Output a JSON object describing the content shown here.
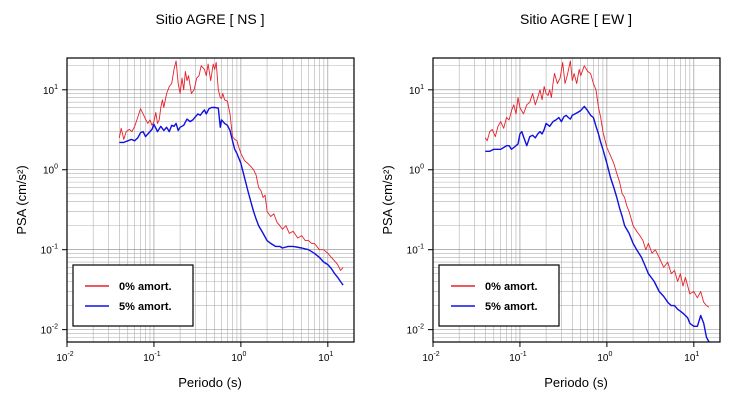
{
  "chart_data": [
    {
      "type": "line",
      "title": "Sitio AGRE [ NS ]",
      "xlabel": "Periodo (s)",
      "ylabel": "PSA (cm/s²)",
      "xscale": "log",
      "yscale": "log",
      "xlim": [
        0.01,
        20
      ],
      "ylim": [
        0.007,
        25
      ],
      "xticks": [
        {
          "base": "10",
          "exp": "-2"
        },
        {
          "base": "10",
          "exp": "-1"
        },
        {
          "base": "10",
          "exp": "0"
        },
        {
          "base": "10",
          "exp": "1"
        }
      ],
      "yticks": [
        {
          "base": "10",
          "exp": "-2"
        },
        {
          "base": "10",
          "exp": "-1"
        },
        {
          "base": "10",
          "exp": "0"
        },
        {
          "base": "10",
          "exp": "1"
        }
      ],
      "grid": true,
      "legend_position": "bottom-left",
      "series": [
        {
          "name": "0% amort.",
          "color": "#e8202a",
          "x": [
            0.04,
            0.042,
            0.045,
            0.048,
            0.052,
            0.056,
            0.06,
            0.065,
            0.07,
            0.075,
            0.08,
            0.085,
            0.09,
            0.095,
            0.1,
            0.105,
            0.11,
            0.115,
            0.12,
            0.125,
            0.13,
            0.14,
            0.15,
            0.16,
            0.17,
            0.18,
            0.19,
            0.2,
            0.21,
            0.22,
            0.23,
            0.24,
            0.25,
            0.27,
            0.29,
            0.31,
            0.33,
            0.35,
            0.38,
            0.4,
            0.42,
            0.45,
            0.48,
            0.5,
            0.52,
            0.55,
            0.58,
            0.6,
            0.62,
            0.65,
            0.7,
            0.75,
            0.8,
            0.85,
            0.9,
            0.95,
            1.0,
            1.1,
            1.2,
            1.3,
            1.4,
            1.5,
            1.6,
            1.7,
            1.8,
            1.9,
            2.0,
            2.2,
            2.4,
            2.6,
            2.8,
            3.0,
            3.3,
            3.6,
            4.0,
            4.5,
            5.0,
            5.5,
            6.0,
            6.5,
            7.0,
            8.0,
            9.0,
            10.0,
            11.0,
            12.0,
            13.0,
            14.0,
            15.0
          ],
          "values": [
            2.5,
            3.3,
            2.4,
            3.0,
            3.2,
            3.0,
            3.5,
            4.5,
            5.8,
            5.0,
            4.3,
            3.8,
            4.2,
            3.6,
            4.0,
            5.2,
            3.8,
            4.2,
            6.0,
            7.5,
            6.0,
            9.0,
            11.0,
            12.0,
            18.0,
            23.0,
            12.0,
            9.0,
            14.0,
            10.0,
            17.0,
            13.0,
            15.0,
            9.0,
            10.0,
            14.0,
            15.0,
            20.0,
            18.0,
            15.0,
            21.0,
            13.0,
            21.0,
            18.0,
            22.0,
            10.0,
            8.0,
            7.8,
            9.0,
            7.5,
            7.2,
            5.0,
            2.6,
            2.4,
            2.3,
            1.9,
            1.6,
            1.3,
            1.2,
            1.1,
            1.0,
            0.85,
            0.6,
            0.55,
            0.45,
            0.48,
            0.3,
            0.26,
            0.28,
            0.22,
            0.2,
            0.18,
            0.2,
            0.16,
            0.17,
            0.14,
            0.15,
            0.13,
            0.13,
            0.12,
            0.12,
            0.1,
            0.1,
            0.09,
            0.08,
            0.072,
            0.065,
            0.055,
            0.06
          ]
        },
        {
          "name": "5% amort.",
          "color": "#1010e0",
          "x": [
            0.04,
            0.045,
            0.05,
            0.055,
            0.06,
            0.065,
            0.07,
            0.075,
            0.08,
            0.085,
            0.09,
            0.095,
            0.1,
            0.11,
            0.12,
            0.13,
            0.14,
            0.15,
            0.16,
            0.17,
            0.18,
            0.19,
            0.2,
            0.22,
            0.24,
            0.26,
            0.28,
            0.3,
            0.32,
            0.34,
            0.36,
            0.38,
            0.4,
            0.43,
            0.46,
            0.5,
            0.55,
            0.58,
            0.6,
            0.65,
            0.7,
            0.75,
            0.8,
            0.85,
            0.9,
            1.0,
            1.1,
            1.2,
            1.3,
            1.4,
            1.5,
            1.6,
            1.8,
            2.0,
            2.2,
            2.5,
            2.8,
            3.0,
            3.5,
            4.0,
            5.0,
            6.0,
            7.0,
            8.0,
            9.0,
            10.0,
            11.0,
            12.0,
            13.0,
            14.0,
            15.0
          ],
          "values": [
            2.2,
            2.2,
            2.3,
            2.4,
            2.3,
            2.5,
            2.9,
            3.0,
            2.6,
            2.8,
            3.0,
            3.2,
            3.7,
            3.0,
            3.5,
            3.1,
            3.4,
            3.0,
            3.6,
            3.5,
            3.8,
            3.1,
            3.4,
            3.6,
            4.3,
            4.0,
            4.2,
            4.6,
            5.0,
            4.8,
            5.2,
            5.6,
            5.0,
            5.8,
            6.0,
            6.0,
            5.9,
            3.4,
            4.2,
            3.8,
            3.6,
            3.1,
            2.3,
            1.8,
            1.6,
            1.2,
            0.8,
            0.55,
            0.4,
            0.3,
            0.24,
            0.2,
            0.16,
            0.13,
            0.12,
            0.11,
            0.11,
            0.105,
            0.11,
            0.11,
            0.105,
            0.1,
            0.09,
            0.08,
            0.07,
            0.065,
            0.058,
            0.05,
            0.045,
            0.04,
            0.036
          ]
        }
      ]
    },
    {
      "type": "line",
      "title": "Sitio AGRE [ EW ]",
      "xlabel": "Periodo (s)",
      "ylabel": "PSA (cm/s²)",
      "xscale": "log",
      "yscale": "log",
      "xlim": [
        0.01,
        20
      ],
      "ylim": [
        0.007,
        25
      ],
      "xticks": [
        {
          "base": "10",
          "exp": "-2"
        },
        {
          "base": "10",
          "exp": "-1"
        },
        {
          "base": "10",
          "exp": "0"
        },
        {
          "base": "10",
          "exp": "1"
        }
      ],
      "yticks": [
        {
          "base": "10",
          "exp": "-2"
        },
        {
          "base": "10",
          "exp": "-1"
        },
        {
          "base": "10",
          "exp": "0"
        },
        {
          "base": "10",
          "exp": "1"
        }
      ],
      "grid": true,
      "legend_position": "bottom-left",
      "series": [
        {
          "name": "0% amort.",
          "color": "#e8202a",
          "x": [
            0.04,
            0.042,
            0.045,
            0.048,
            0.052,
            0.056,
            0.06,
            0.065,
            0.07,
            0.075,
            0.08,
            0.085,
            0.09,
            0.095,
            0.1,
            0.11,
            0.12,
            0.13,
            0.14,
            0.15,
            0.16,
            0.17,
            0.18,
            0.19,
            0.2,
            0.21,
            0.22,
            0.23,
            0.24,
            0.25,
            0.27,
            0.29,
            0.31,
            0.33,
            0.35,
            0.38,
            0.4,
            0.42,
            0.45,
            0.48,
            0.5,
            0.55,
            0.6,
            0.65,
            0.7,
            0.75,
            0.8,
            0.85,
            0.9,
            1.0,
            1.1,
            1.2,
            1.3,
            1.4,
            1.5,
            1.6,
            1.7,
            1.8,
            2.0,
            2.2,
            2.4,
            2.6,
            2.8,
            3.0,
            3.3,
            3.6,
            4.0,
            4.5,
            5.0,
            5.5,
            6.0,
            6.5,
            7.0,
            7.5,
            8.0,
            9.0,
            10.0,
            11.0,
            12.0,
            13.0,
            14.0,
            15.0
          ],
          "values": [
            2.5,
            2.3,
            3.0,
            3.2,
            2.6,
            3.5,
            4.0,
            3.3,
            4.5,
            4.2,
            5.5,
            6.5,
            5.0,
            8.0,
            6.0,
            5.0,
            6.5,
            7.0,
            9.0,
            6.5,
            8.0,
            10.0,
            7.5,
            11.0,
            9.0,
            8.5,
            10.0,
            8.0,
            12.0,
            16.0,
            12.0,
            14.0,
            22.0,
            12.0,
            15.0,
            23.0,
            13.0,
            16.0,
            12.0,
            18.0,
            15.0,
            20.0,
            17.0,
            16.0,
            12.0,
            10.0,
            6.0,
            4.5,
            3.0,
            1.9,
            1.5,
            1.2,
            0.9,
            0.7,
            0.5,
            0.45,
            0.35,
            0.3,
            0.2,
            0.17,
            0.15,
            0.13,
            0.1,
            0.12,
            0.09,
            0.1,
            0.08,
            0.06,
            0.07,
            0.05,
            0.055,
            0.04,
            0.05,
            0.035,
            0.045,
            0.028,
            0.03,
            0.025,
            0.03,
            0.022,
            0.02,
            0.019
          ]
        },
        {
          "name": "5% amort.",
          "color": "#1010e0",
          "x": [
            0.04,
            0.045,
            0.05,
            0.055,
            0.06,
            0.065,
            0.07,
            0.075,
            0.08,
            0.085,
            0.09,
            0.095,
            0.1,
            0.105,
            0.11,
            0.12,
            0.13,
            0.14,
            0.15,
            0.16,
            0.17,
            0.18,
            0.19,
            0.2,
            0.22,
            0.24,
            0.26,
            0.28,
            0.3,
            0.32,
            0.34,
            0.36,
            0.38,
            0.4,
            0.43,
            0.46,
            0.5,
            0.55,
            0.6,
            0.65,
            0.7,
            0.75,
            0.8,
            0.85,
            0.9,
            1.0,
            1.1,
            1.2,
            1.3,
            1.4,
            1.5,
            1.6,
            1.8,
            2.0,
            2.2,
            2.5,
            2.8,
            3.0,
            3.5,
            4.0,
            4.5,
            5.0,
            5.5,
            6.0,
            6.5,
            7.0,
            7.5,
            8.0,
            8.5,
            9.0,
            10.0,
            11.0,
            12.0,
            13.0,
            14.0,
            15.0
          ],
          "values": [
            1.7,
            1.7,
            1.8,
            1.8,
            1.8,
            1.9,
            2.0,
            2.0,
            1.8,
            1.9,
            2.0,
            2.1,
            2.8,
            3.0,
            2.6,
            2.0,
            2.6,
            2.7,
            2.5,
            2.8,
            3.0,
            2.8,
            3.2,
            3.8,
            3.5,
            4.0,
            4.2,
            4.5,
            4.0,
            4.6,
            4.8,
            4.5,
            4.3,
            4.8,
            5.0,
            5.2,
            5.5,
            6.2,
            5.5,
            4.8,
            4.5,
            3.5,
            2.8,
            2.2,
            1.8,
            1.2,
            0.8,
            0.6,
            0.45,
            0.33,
            0.26,
            0.2,
            0.16,
            0.12,
            0.1,
            0.08,
            0.06,
            0.05,
            0.04,
            0.03,
            0.026,
            0.022,
            0.02,
            0.02,
            0.018,
            0.017,
            0.016,
            0.015,
            0.014,
            0.012,
            0.011,
            0.011,
            0.015,
            0.012,
            0.008,
            0.007
          ]
        }
      ]
    }
  ]
}
